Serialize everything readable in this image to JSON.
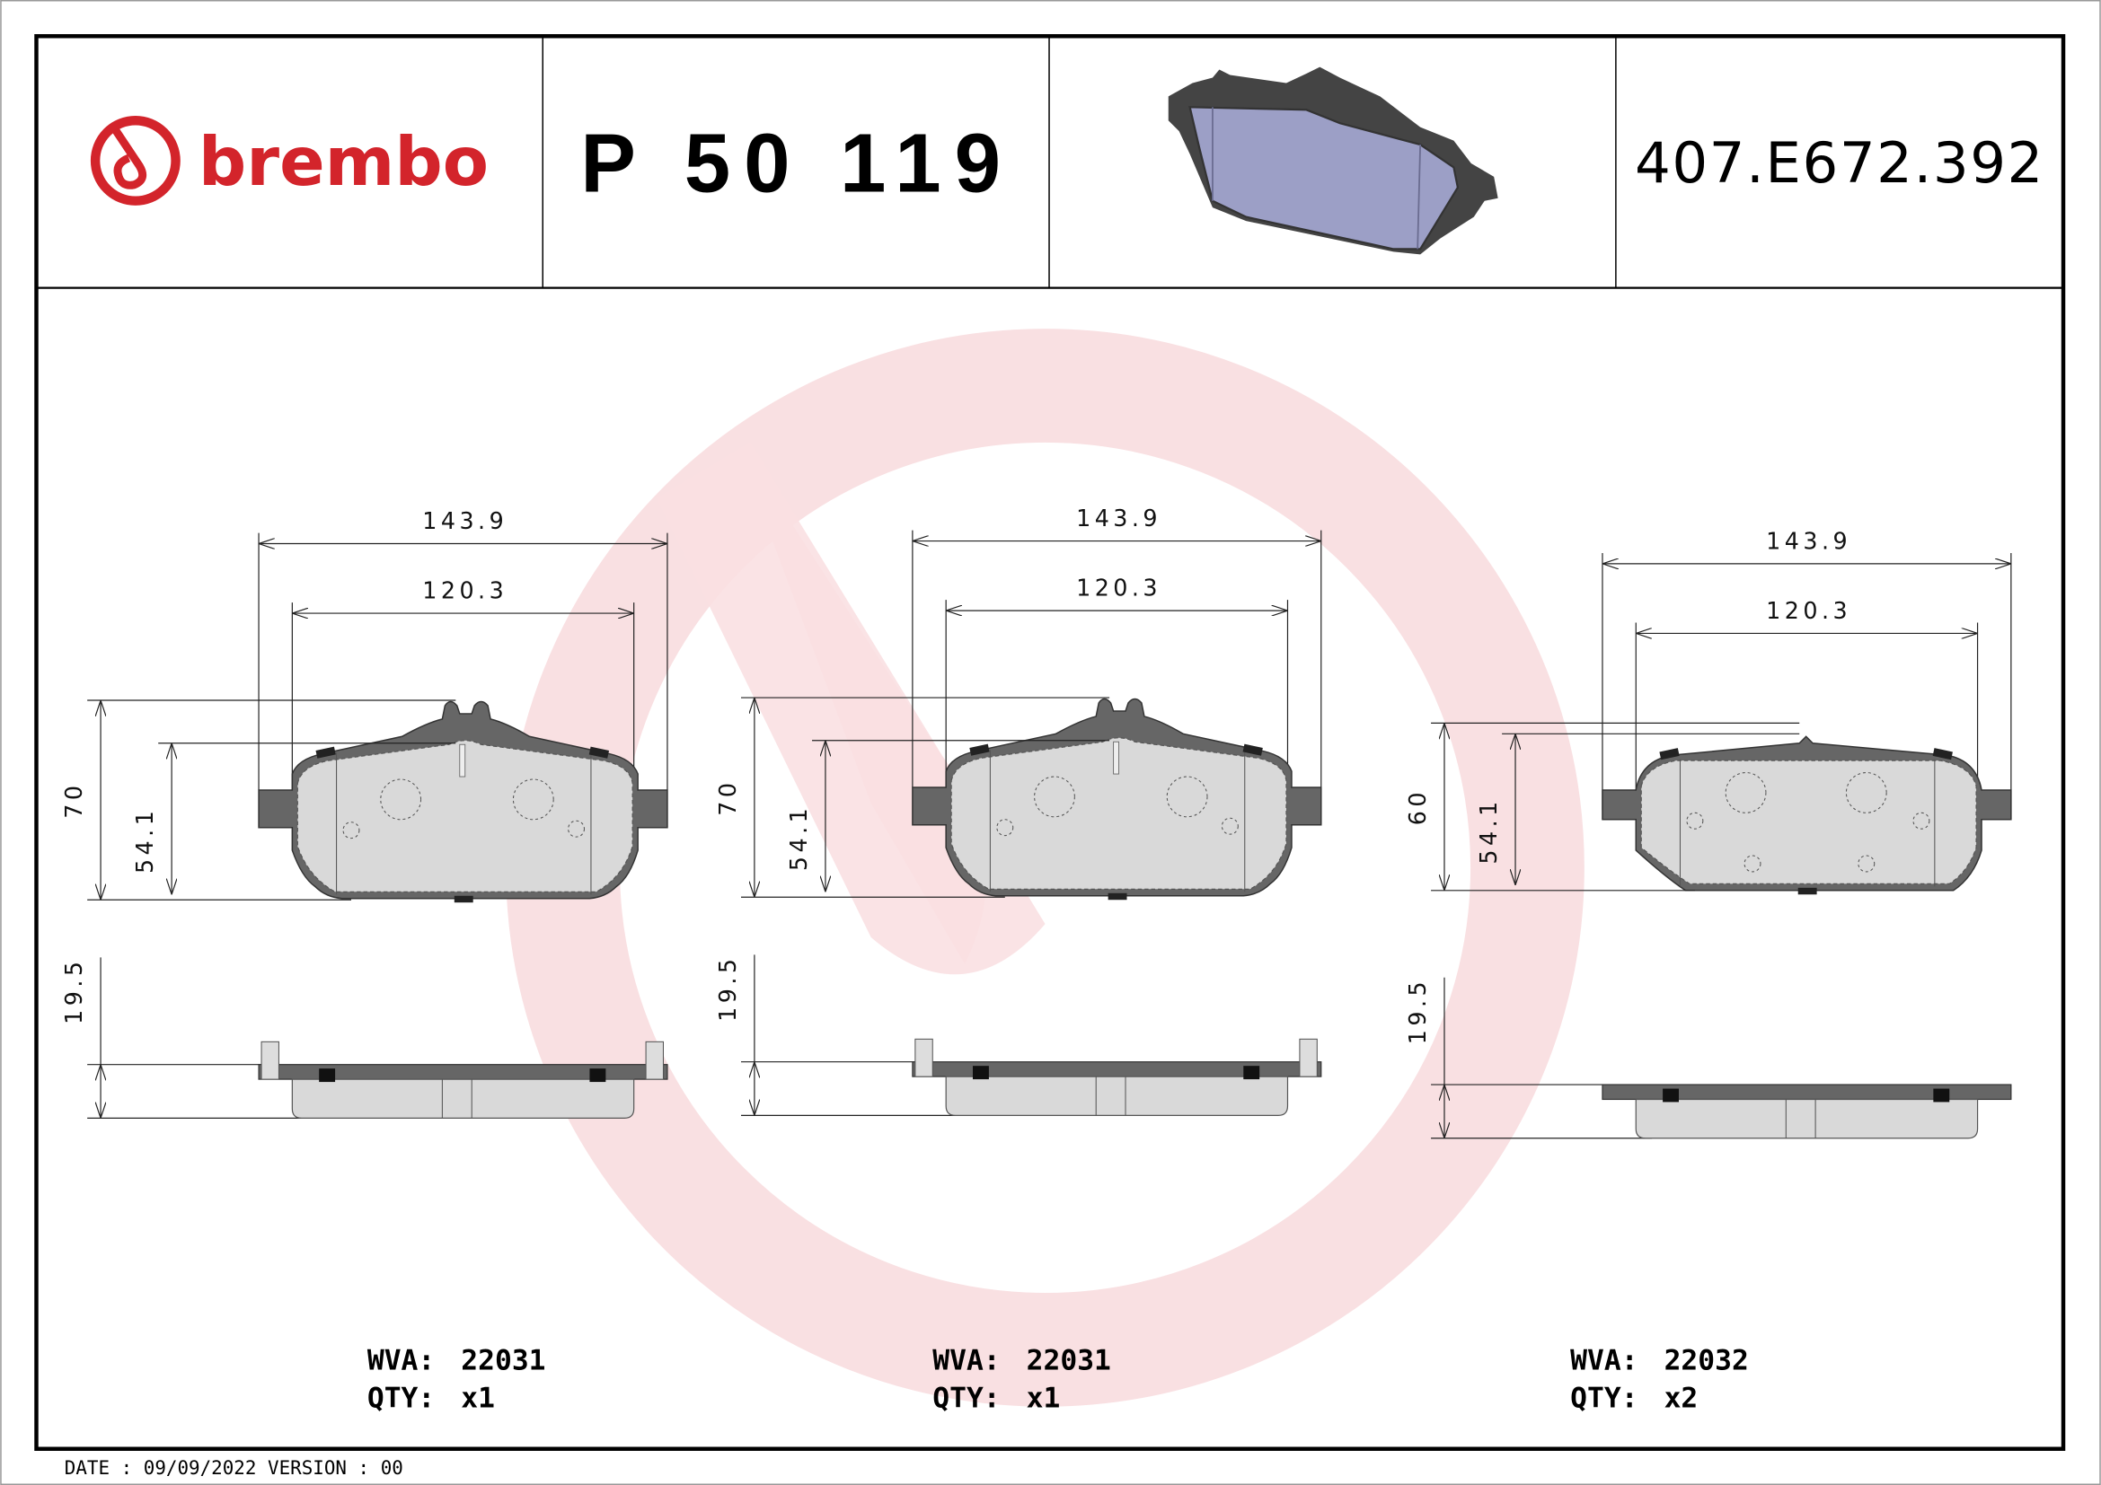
{
  "header": {
    "brand": "brembo",
    "part_number": "P 50 119",
    "reference_code": "407.E672.392",
    "brand_color": "#d3242b",
    "product_image": "brake-pad-3d-icon"
  },
  "drawings": [
    {
      "width_outer": "143.9",
      "width_inner": "120.3",
      "height_outer": "70",
      "height_inner": "54.1",
      "thickness": "19.5",
      "wva_label": "WVA:",
      "wva": "22031",
      "qty_label": "QTY:",
      "qty": "x1"
    },
    {
      "width_outer": "143.9",
      "width_inner": "120.3",
      "height_outer": "70",
      "height_inner": "54.1",
      "thickness": "19.5",
      "wva_label": "WVA:",
      "wva": "22031",
      "qty_label": "QTY:",
      "qty": "x1"
    },
    {
      "width_outer": "143.9",
      "width_inner": "120.3",
      "height_outer": "60",
      "height_inner": "54.1",
      "thickness": "19.5",
      "wva_label": "WVA:",
      "wva": "22032",
      "qty_label": "QTY:",
      "qty": "x2"
    }
  ],
  "footer": {
    "text": "DATE : 09/09/2022 VERSION : 00"
  },
  "watermark": "brembo-logo-watermark"
}
